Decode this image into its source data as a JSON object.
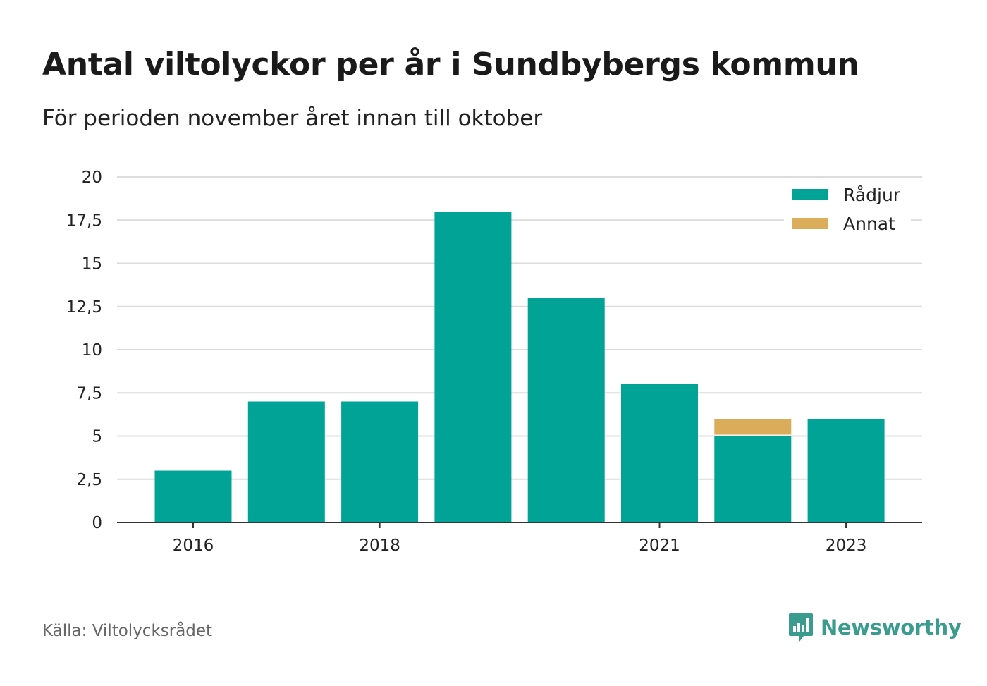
{
  "title": "Antal viltolyckor per år i Sundbybergs kommun",
  "subtitle": "För perioden november året innan till oktober",
  "source": "Källa: Viltolycksrådet",
  "brand": {
    "name": "Newsworthy",
    "icon": "newsworthy-logo-icon",
    "color": "#3a9c8f"
  },
  "chart_data": {
    "type": "bar",
    "stacked": true,
    "categories": [
      "2016",
      "2017",
      "2018",
      "2019",
      "2020",
      "2021",
      "2022",
      "2023"
    ],
    "x_tick_labels": [
      "2016",
      "",
      "2018",
      "",
      "",
      "2021",
      "",
      "2023"
    ],
    "series": [
      {
        "name": "Rådjur",
        "color": "#00a396",
        "values": [
          3,
          7,
          7,
          18,
          13,
          8,
          5,
          6
        ]
      },
      {
        "name": "Annat",
        "color": "#dbac5a",
        "values": [
          0,
          0,
          0,
          0,
          0,
          0,
          1,
          0
        ]
      }
    ],
    "ylim": [
      0,
      20
    ],
    "y_ticks": [
      "0",
      "2,5",
      "5",
      "7,5",
      "10",
      "12,5",
      "15",
      "17,5",
      "20"
    ],
    "y_tick_values": [
      0,
      2.5,
      5,
      7.5,
      10,
      12.5,
      15,
      17.5,
      20
    ],
    "grid": true,
    "legend_position": "top-right"
  }
}
